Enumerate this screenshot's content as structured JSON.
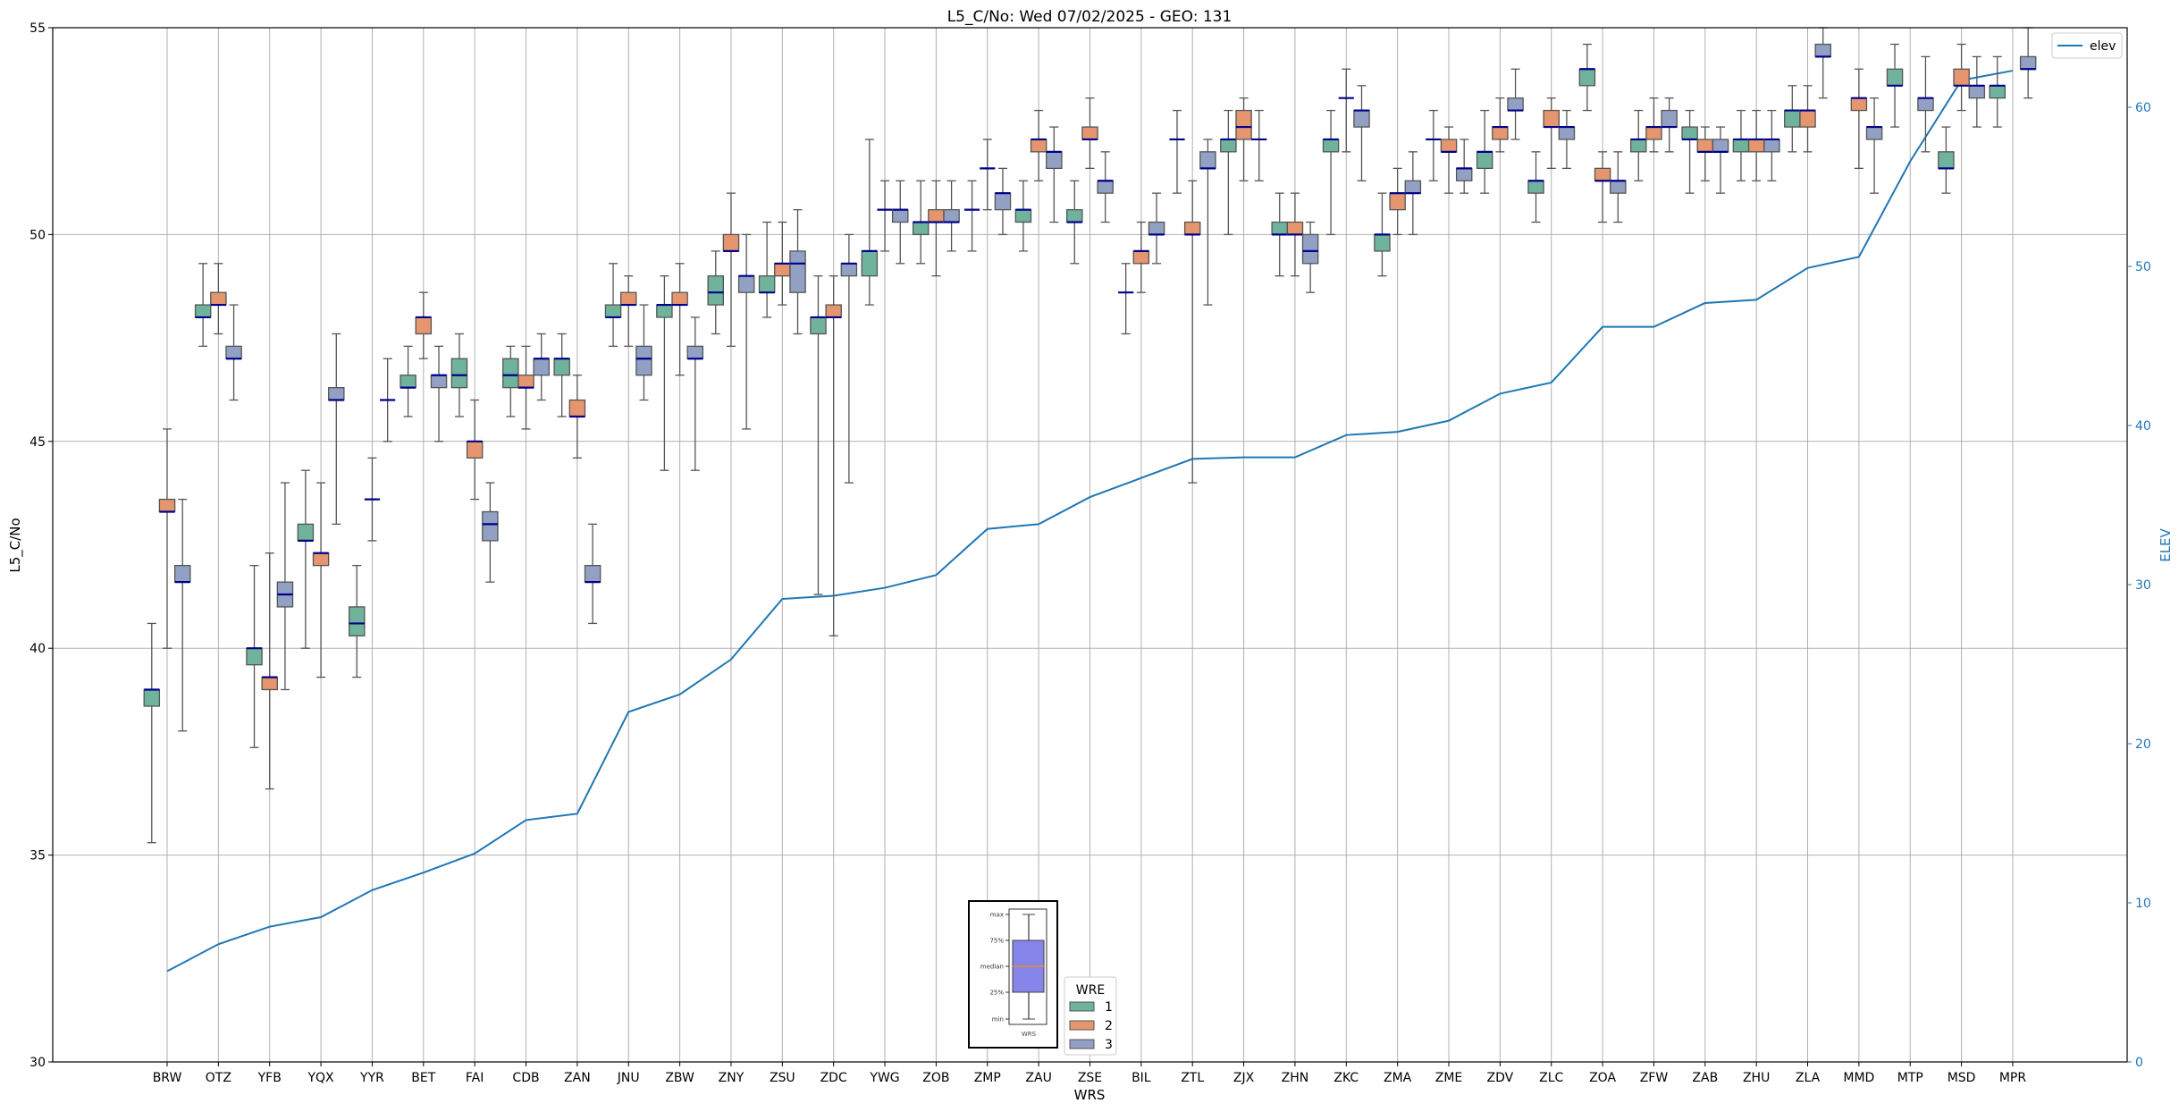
{
  "chart_data": {
    "type": "box",
    "title": "L5_C/No: Wed 07/02/2025 - GEO: 131",
    "xlabel": "WRS",
    "ylabel": "L5_C/No",
    "ylabel_right": "ELEV",
    "ylim": [
      30,
      55
    ],
    "ylim_right": [
      0,
      65
    ],
    "yticks": [
      30,
      35,
      40,
      45,
      50,
      55
    ],
    "yticks_right": [
      0,
      10,
      20,
      30,
      40,
      50,
      60
    ],
    "grid": true,
    "colors": {
      "1": "#6fb39c",
      "2": "#e5966f",
      "3": "#92a0c4",
      "median": "#00008b",
      "elev": "#1f77b4"
    },
    "categories": [
      "BRW",
      "OTZ",
      "YFB",
      "YQX",
      "YYR",
      "BET",
      "FAI",
      "CDB",
      "ZAN",
      "JNU",
      "ZBW",
      "ZNY",
      "ZSU",
      "ZDC",
      "YWG",
      "ZOB",
      "ZMP",
      "ZAU",
      "ZSE",
      "BIL",
      "ZTL",
      "ZJX",
      "ZHN",
      "ZKC",
      "ZMA",
      "ZME",
      "ZDV",
      "ZLC",
      "ZOA",
      "ZFW",
      "ZAB",
      "ZHU",
      "ZLA",
      "MMD",
      "MTP",
      "MSD",
      "MPR"
    ],
    "box_fields": [
      "wre",
      "min",
      "q1",
      "median",
      "q3",
      "max"
    ],
    "boxes": [
      [
        [
          1,
          35.3,
          38.6,
          39.0,
          39.0,
          40.6
        ],
        [
          2,
          40.0,
          43.3,
          43.3,
          43.6,
          45.3
        ],
        [
          3,
          38.0,
          41.6,
          41.6,
          42.0,
          43.6
        ]
      ],
      [
        [
          1,
          47.3,
          48.0,
          48.0,
          48.3,
          49.3
        ],
        [
          2,
          47.6,
          48.3,
          48.3,
          48.6,
          49.3
        ],
        [
          3,
          46.0,
          47.0,
          47.0,
          47.3,
          48.3
        ]
      ],
      [
        [
          1,
          37.6,
          39.6,
          40.0,
          40.0,
          42.0
        ],
        [
          2,
          36.6,
          39.0,
          39.3,
          39.3,
          42.3
        ],
        [
          3,
          39.0,
          41.0,
          41.3,
          41.6,
          44.0
        ]
      ],
      [
        [
          1,
          40.0,
          42.6,
          42.6,
          43.0,
          44.3
        ],
        [
          2,
          39.3,
          42.0,
          42.3,
          42.3,
          44.0
        ],
        [
          3,
          43.0,
          46.0,
          46.0,
          46.3,
          47.6
        ]
      ],
      [
        [
          1,
          39.3,
          40.3,
          40.6,
          41.0,
          42.0
        ],
        [
          2,
          42.6,
          43.6,
          43.6,
          43.6,
          44.6
        ],
        [
          3,
          45.0,
          46.0,
          46.0,
          46.0,
          47.0
        ]
      ],
      [
        [
          1,
          45.6,
          46.3,
          46.3,
          46.6,
          47.3
        ],
        [
          2,
          47.0,
          47.6,
          48.0,
          48.0,
          48.6
        ],
        [
          3,
          45.0,
          46.3,
          46.6,
          46.6,
          47.3
        ]
      ],
      [
        [
          1,
          45.6,
          46.3,
          46.6,
          47.0,
          47.6
        ],
        [
          2,
          43.6,
          44.6,
          45.0,
          45.0,
          46.0
        ],
        [
          3,
          41.6,
          42.6,
          43.0,
          43.3,
          44.0
        ]
      ],
      [
        [
          1,
          45.6,
          46.3,
          46.6,
          47.0,
          47.3
        ],
        [
          2,
          45.3,
          46.3,
          46.3,
          46.6,
          47.3
        ],
        [
          3,
          46.0,
          46.6,
          47.0,
          47.0,
          47.6
        ]
      ],
      [
        [
          1,
          45.6,
          46.6,
          47.0,
          47.0,
          47.6
        ],
        [
          2,
          44.6,
          45.6,
          45.6,
          46.0,
          46.6
        ],
        [
          3,
          40.6,
          41.6,
          41.6,
          42.0,
          43.0
        ]
      ],
      [
        [
          1,
          47.3,
          48.0,
          48.0,
          48.3,
          49.3
        ],
        [
          2,
          47.3,
          48.3,
          48.3,
          48.6,
          49.0
        ],
        [
          3,
          46.0,
          46.6,
          47.0,
          47.3,
          48.3
        ]
      ],
      [
        [
          1,
          44.3,
          48.0,
          48.3,
          48.3,
          49.0
        ],
        [
          2,
          46.6,
          48.3,
          48.3,
          48.6,
          49.3
        ],
        [
          3,
          44.3,
          47.0,
          47.0,
          47.3,
          48.0
        ]
      ],
      [
        [
          1,
          47.6,
          48.3,
          48.6,
          49.0,
          49.6
        ],
        [
          2,
          47.3,
          49.6,
          49.6,
          50.0,
          51.0
        ],
        [
          3,
          45.3,
          48.6,
          49.0,
          49.0,
          50.0
        ]
      ],
      [
        [
          1,
          48.0,
          48.6,
          48.6,
          49.0,
          50.3
        ],
        [
          2,
          48.3,
          49.0,
          49.3,
          49.3,
          50.3
        ],
        [
          3,
          47.6,
          48.6,
          49.3,
          49.6,
          50.6
        ]
      ],
      [
        [
          1,
          41.3,
          47.6,
          48.0,
          48.0,
          49.0
        ],
        [
          2,
          40.3,
          48.0,
          48.0,
          48.3,
          49.0
        ],
        [
          3,
          44.0,
          49.0,
          49.3,
          49.3,
          50.0
        ]
      ],
      [
        [
          1,
          48.3,
          49.0,
          49.6,
          49.6,
          52.3
        ],
        [
          2,
          49.6,
          50.6,
          50.6,
          50.6,
          51.3
        ],
        [
          3,
          49.3,
          50.3,
          50.6,
          50.6,
          51.3
        ]
      ],
      [
        [
          1,
          49.3,
          50.0,
          50.3,
          50.3,
          51.3
        ],
        [
          2,
          49.0,
          50.3,
          50.3,
          50.6,
          51.3
        ],
        [
          3,
          49.6,
          50.3,
          50.3,
          50.6,
          51.3
        ]
      ],
      [
        [
          1,
          49.6,
          50.6,
          50.6,
          50.6,
          51.3
        ],
        [
          2,
          50.6,
          51.6,
          51.6,
          51.6,
          52.3
        ],
        [
          3,
          50.0,
          50.6,
          51.0,
          51.0,
          51.6
        ]
      ],
      [
        [
          1,
          49.6,
          50.3,
          50.6,
          50.6,
          51.3
        ],
        [
          2,
          51.3,
          52.0,
          52.3,
          52.3,
          53.0
        ],
        [
          3,
          50.3,
          51.6,
          52.0,
          52.0,
          52.6
        ]
      ],
      [
        [
          1,
          49.3,
          50.3,
          50.3,
          50.6,
          51.3
        ],
        [
          2,
          51.6,
          52.3,
          52.3,
          52.6,
          53.3
        ],
        [
          3,
          50.3,
          51.0,
          51.3,
          51.3,
          52.0
        ]
      ],
      [
        [
          1,
          47.6,
          48.6,
          48.6,
          48.6,
          49.3
        ],
        [
          2,
          48.6,
          49.3,
          49.6,
          49.6,
          50.3
        ],
        [
          3,
          49.3,
          50.0,
          50.0,
          50.3,
          51.0
        ]
      ],
      [
        [
          1,
          51.0,
          52.3,
          52.3,
          52.3,
          53.0
        ],
        [
          2,
          44.0,
          50.0,
          50.0,
          50.3,
          51.3
        ],
        [
          3,
          48.3,
          51.6,
          51.6,
          52.0,
          52.3
        ]
      ],
      [
        [
          1,
          50.0,
          52.0,
          52.3,
          52.3,
          53.0
        ],
        [
          2,
          51.3,
          52.3,
          52.6,
          53.0,
          53.3
        ],
        [
          3,
          51.3,
          52.3,
          52.3,
          52.3,
          53.0
        ]
      ],
      [
        [
          1,
          49.0,
          50.0,
          50.0,
          50.3,
          51.0
        ],
        [
          2,
          49.0,
          50.0,
          50.0,
          50.3,
          51.0
        ],
        [
          3,
          48.6,
          49.3,
          49.6,
          50.0,
          50.3
        ]
      ],
      [
        [
          1,
          50.0,
          52.0,
          52.3,
          52.3,
          53.0
        ],
        [
          2,
          52.0,
          53.3,
          53.3,
          53.3,
          54.0
        ],
        [
          3,
          51.3,
          52.6,
          53.0,
          53.0,
          53.6
        ]
      ],
      [
        [
          1,
          49.0,
          49.6,
          50.0,
          50.0,
          51.0
        ],
        [
          2,
          50.0,
          50.6,
          51.0,
          51.0,
          51.6
        ],
        [
          3,
          50.0,
          51.0,
          51.0,
          51.3,
          52.0
        ]
      ],
      [
        [
          1,
          51.3,
          52.3,
          52.3,
          52.3,
          53.0
        ],
        [
          2,
          51.0,
          52.0,
          52.0,
          52.3,
          52.6
        ],
        [
          3,
          51.0,
          51.3,
          51.6,
          51.6,
          52.3
        ]
      ],
      [
        [
          1,
          51.0,
          51.6,
          52.0,
          52.0,
          53.0
        ],
        [
          2,
          52.0,
          52.3,
          52.6,
          52.6,
          53.3
        ],
        [
          3,
          52.3,
          53.0,
          53.0,
          53.3,
          54.0
        ]
      ],
      [
        [
          1,
          50.3,
          51.0,
          51.3,
          51.3,
          52.0
        ],
        [
          2,
          51.6,
          52.6,
          52.6,
          53.0,
          53.3
        ],
        [
          3,
          51.6,
          52.3,
          52.6,
          52.6,
          53.0
        ]
      ],
      [
        [
          1,
          53.0,
          53.6,
          54.0,
          54.0,
          54.6
        ],
        [
          2,
          50.3,
          51.3,
          51.3,
          51.6,
          52.0
        ],
        [
          3,
          50.3,
          51.0,
          51.3,
          51.3,
          52.0
        ]
      ],
      [
        [
          1,
          51.3,
          52.0,
          52.3,
          52.3,
          53.0
        ],
        [
          2,
          52.0,
          52.3,
          52.6,
          52.6,
          53.3
        ],
        [
          3,
          52.0,
          52.6,
          52.6,
          53.0,
          53.3
        ]
      ],
      [
        [
          1,
          51.0,
          52.3,
          52.3,
          52.6,
          53.0
        ],
        [
          2,
          51.3,
          52.0,
          52.0,
          52.3,
          52.6
        ],
        [
          3,
          51.0,
          52.0,
          52.0,
          52.3,
          52.6
        ]
      ],
      [
        [
          1,
          51.3,
          52.0,
          52.3,
          52.3,
          53.0
        ],
        [
          2,
          51.3,
          52.0,
          52.3,
          52.3,
          53.0
        ],
        [
          3,
          51.3,
          52.0,
          52.3,
          52.3,
          53.0
        ]
      ],
      [
        [
          1,
          52.0,
          52.6,
          53.0,
          53.0,
          53.6
        ],
        [
          2,
          52.0,
          52.6,
          53.0,
          53.0,
          53.6
        ],
        [
          3,
          53.3,
          54.3,
          54.3,
          54.6,
          55.0
        ]
      ],
      [
        [
          2,
          51.6,
          53.0,
          53.3,
          53.3,
          54.0
        ],
        [
          3,
          51.0,
          52.3,
          52.6,
          52.6,
          53.3
        ]
      ],
      [
        [
          1,
          52.6,
          53.6,
          53.6,
          54.0,
          54.6
        ],
        [
          3,
          52.0,
          53.0,
          53.3,
          53.3,
          54.3
        ]
      ],
      [
        [
          1,
          51.0,
          51.6,
          51.6,
          52.0,
          52.6
        ],
        [
          2,
          53.0,
          53.6,
          53.6,
          54.0,
          54.6
        ],
        [
          3,
          52.6,
          53.3,
          53.6,
          53.6,
          54.3
        ]
      ],
      [
        [
          1,
          52.6,
          53.3,
          53.6,
          53.6,
          54.3
        ],
        [
          3,
          53.3,
          54.0,
          54.0,
          54.3,
          55.0
        ]
      ]
    ],
    "elev_series": {
      "name": "elev",
      "values": [
        5.7,
        7.4,
        8.5,
        9.1,
        10.8,
        11.9,
        13.1,
        15.2,
        15.6,
        22.0,
        23.1,
        25.3,
        29.1,
        29.3,
        29.8,
        30.6,
        33.5,
        33.8,
        35.5,
        36.7,
        37.9,
        38.0,
        38.0,
        39.4,
        39.6,
        40.3,
        42.0,
        42.7,
        46.2,
        46.2,
        47.7,
        47.9,
        49.9,
        50.6,
        56.6,
        61.7,
        62.3
      ]
    },
    "legend_elev": {
      "label": "elev",
      "placement": "top-right"
    },
    "legend_wre": {
      "title": "WRE",
      "entries": [
        "1",
        "2",
        "3"
      ],
      "placement": "bottom-center"
    },
    "inset_key": {
      "labels": [
        "max",
        "75%",
        "median",
        "25%",
        "min"
      ],
      "xlabel": "WRS"
    }
  }
}
